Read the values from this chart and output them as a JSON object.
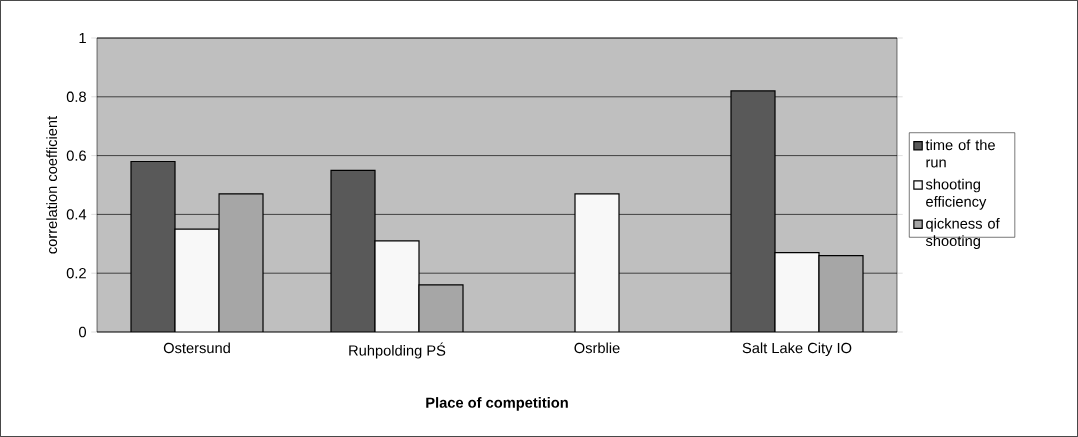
{
  "chart_data": {
    "type": "bar",
    "categories": [
      "Ostersund",
      "Ruhpolding PŚ",
      "Osrblie",
      "Salt Lake City IO"
    ],
    "series": [
      {
        "name": "time of the run",
        "color": "#595959",
        "values": [
          0.58,
          0.55,
          null,
          0.82
        ]
      },
      {
        "name": "shooting efficiency",
        "color": "#f8f8f8",
        "values": [
          0.35,
          0.31,
          0.47,
          0.27
        ]
      },
      {
        "name": "qickness of shooting",
        "color": "#a6a6a6",
        "values": [
          0.47,
          0.16,
          null,
          0.26
        ]
      }
    ],
    "xlabel": "Place of competition",
    "ylabel": "correlation coefficient",
    "ylim": [
      0,
      1
    ],
    "yticks": [
      0,
      0.2,
      0.4,
      0.6,
      0.8,
      1
    ],
    "grid": "y",
    "legend": "right"
  }
}
